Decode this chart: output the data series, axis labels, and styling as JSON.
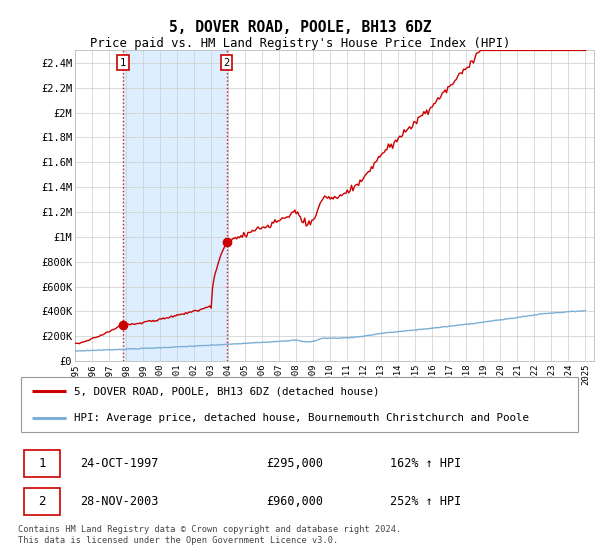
{
  "title": "5, DOVER ROAD, POOLE, BH13 6DZ",
  "subtitle": "Price paid vs. HM Land Registry's House Price Index (HPI)",
  "ylim": [
    0,
    2500000
  ],
  "yticks": [
    0,
    200000,
    400000,
    600000,
    800000,
    1000000,
    1200000,
    1400000,
    1600000,
    1800000,
    2000000,
    2200000,
    2400000
  ],
  "ytick_labels": [
    "£0",
    "£200K",
    "£400K",
    "£600K",
    "£800K",
    "£1M",
    "£1.2M",
    "£1.4M",
    "£1.6M",
    "£1.8M",
    "£2M",
    "£2.2M",
    "£2.4M"
  ],
  "xlim_start": 1995.0,
  "xlim_end": 2025.5,
  "sale1_x": 1997.81,
  "sale1_y": 295000,
  "sale2_x": 2003.91,
  "sale2_y": 960000,
  "sale1_date": "24-OCT-1997",
  "sale1_price": "£295,000",
  "sale1_hpi": "162% ↑ HPI",
  "sale2_date": "28-NOV-2003",
  "sale2_price": "£960,000",
  "sale2_hpi": "252% ↑ HPI",
  "property_line_color": "#cc0000",
  "hpi_line_color": "#7bafd4",
  "shade_color": "#ddeeff",
  "legend_property_label": "5, DOVER ROAD, POOLE, BH13 6DZ (detached house)",
  "legend_hpi_label": "HPI: Average price, detached house, Bournemouth Christchurch and Poole",
  "footer": "Contains HM Land Registry data © Crown copyright and database right 2024.\nThis data is licensed under the Open Government Licence v3.0.",
  "background_color": "#ffffff",
  "grid_color": "#cccccc"
}
